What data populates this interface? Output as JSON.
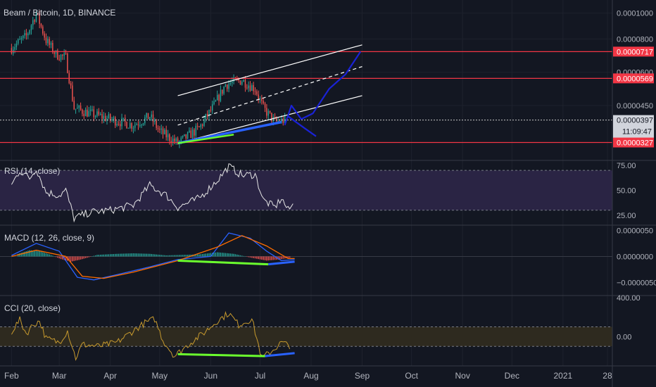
{
  "chart_data": [
    {
      "type": "candlestick",
      "title": "Beam / Bitcoin, 1D, BINANCE",
      "y_scale": "log",
      "ylim": [
        2.8e-05,
        0.000112
      ],
      "y_ticks": [
        "0.0001000",
        "0.0000800",
        "0.0000600",
        "0.0000450"
      ],
      "price_path": [
        [
          "2020-02-01",
          7.4e-05
        ],
        [
          "2020-02-10",
          8.2e-05
        ],
        [
          "2020-02-16",
          0.0001
        ],
        [
          "2020-02-22",
          7.9e-05
        ],
        [
          "2020-02-28",
          7e-05
        ],
        [
          "2020-03-05",
          6.8e-05
        ],
        [
          "2020-03-10",
          4.4e-05
        ],
        [
          "2020-03-20",
          4.2e-05
        ],
        [
          "2020-04-01",
          4e-05
        ],
        [
          "2020-04-15",
          3.8e-05
        ],
        [
          "2020-04-25",
          4.1e-05
        ],
        [
          "2020-05-01",
          3.6e-05
        ],
        [
          "2020-05-12",
          3.25e-05
        ],
        [
          "2020-05-25",
          3.7e-05
        ],
        [
          "2020-06-03",
          4.5e-05
        ],
        [
          "2020-06-10",
          5.4e-05
        ],
        [
          "2020-06-20",
          5.6e-05
        ],
        [
          "2020-06-28",
          5.2e-05
        ],
        [
          "2020-07-03",
          4.4e-05
        ],
        [
          "2020-07-10",
          3.9e-05
        ],
        [
          "2020-07-16",
          3.97e-05
        ]
      ],
      "horizontal_levels": [
        {
          "price": 7.17e-05,
          "label": "0.0000717"
        },
        {
          "price": 5.69e-05,
          "label": "0.0000569"
        },
        {
          "price": 3.27e-05,
          "label": "0.0000327"
        }
      ],
      "last_price": {
        "price": 3.97e-05,
        "label": "0.0000397",
        "countdown": "11:09:47"
      },
      "channel": {
        "upper": [
          [
            "2020-05-12",
            4.9e-05
          ],
          [
            "2020-09-01",
            7.6e-05
          ]
        ],
        "middle": [
          [
            "2020-05-12",
            3.8e-05
          ],
          [
            "2020-09-01",
            6.3e-05
          ]
        ],
        "lower": [
          [
            "2020-05-12",
            3.25e-05
          ],
          [
            "2020-09-01",
            4.9e-05
          ]
        ]
      },
      "projection": [
        [
          "2020-07-16",
          3.8e-05
        ],
        [
          "2020-07-20",
          4.5e-05
        ],
        [
          "2020-07-26",
          4e-05
        ],
        [
          "2020-08-02",
          4.2e-05
        ],
        [
          "2020-08-12",
          5.2e-05
        ],
        [
          "2020-08-22",
          5.9e-05
        ],
        [
          "2020-08-31",
          7.17e-05
        ]
      ],
      "projection_alt": [
        [
          "2020-07-18",
          4.1e-05
        ],
        [
          "2020-07-28",
          3.7e-05
        ],
        [
          "2020-08-04",
          3.45e-05
        ]
      ],
      "green_trendline": [
        [
          "2020-05-12",
          3.25e-05
        ],
        [
          "2020-06-15",
          3.5e-05
        ]
      ],
      "blue_trendline": [
        [
          "2020-05-12",
          3.25e-05
        ],
        [
          "2020-07-14",
          3.9e-05
        ]
      ],
      "colors": {
        "up": "#26a69a",
        "down": "#ef5350",
        "level": "#f23645",
        "projection": "#1a22d6",
        "green": "#6bff2e"
      }
    },
    {
      "type": "line",
      "title": "RSI (14, close)",
      "ylim": [
        15,
        80
      ],
      "y_ticks": [
        "75.00",
        "50.00",
        "25.00"
      ],
      "band": [
        30,
        70
      ],
      "path": [
        [
          "2020-02-01",
          55
        ],
        [
          "2020-02-06",
          70
        ],
        [
          "2020-02-12",
          62
        ],
        [
          "2020-02-16",
          72
        ],
        [
          "2020-02-22",
          48
        ],
        [
          "2020-03-01",
          45
        ],
        [
          "2020-03-05",
          50
        ],
        [
          "2020-03-10",
          22
        ],
        [
          "2020-03-20",
          28
        ],
        [
          "2020-04-01",
          30
        ],
        [
          "2020-04-15",
          35
        ],
        [
          "2020-04-25",
          55
        ],
        [
          "2020-05-05",
          45
        ],
        [
          "2020-05-12",
          33
        ],
        [
          "2020-05-25",
          42
        ],
        [
          "2020-06-05",
          60
        ],
        [
          "2020-06-12",
          74
        ],
        [
          "2020-06-20",
          65
        ],
        [
          "2020-06-28",
          66
        ],
        [
          "2020-07-03",
          40
        ],
        [
          "2020-07-10",
          33
        ],
        [
          "2020-07-14",
          42
        ],
        [
          "2020-07-18",
          30
        ],
        [
          "2020-07-22",
          37
        ]
      ],
      "colors": {
        "line": "#e6e6e6",
        "band": "#2a2444"
      }
    },
    {
      "type": "line",
      "title": "MACD (12, 26, close, 9)",
      "ylim": [
        -7.5e-06,
        6e-06
      ],
      "y_ticks": [
        "0.0000050",
        "0.0000000",
        "−0.0000050"
      ],
      "macd_line": [
        [
          "2020-02-01",
          2e-07
        ],
        [
          "2020-02-16",
          2.5e-06
        ],
        [
          "2020-03-01",
          1e-06
        ],
        [
          "2020-03-12",
          -4e-06
        ],
        [
          "2020-03-22",
          -4.5e-06
        ],
        [
          "2020-04-05",
          -3.5e-06
        ],
        [
          "2020-04-25",
          -2e-06
        ],
        [
          "2020-05-12",
          -6e-07
        ],
        [
          "2020-06-01",
          0.0
        ],
        [
          "2020-06-12",
          4.5e-06
        ],
        [
          "2020-06-25",
          3.5e-06
        ],
        [
          "2020-07-05",
          1e-06
        ],
        [
          "2020-07-14",
          -8e-07
        ],
        [
          "2020-07-22",
          -6e-07
        ]
      ],
      "signal_line": [
        [
          "2020-02-01",
          0.0
        ],
        [
          "2020-02-16",
          1.2e-06
        ],
        [
          "2020-03-05",
          0.0
        ],
        [
          "2020-03-15",
          -3.8e-06
        ],
        [
          "2020-03-28",
          -4.2e-06
        ],
        [
          "2020-04-15",
          -3e-06
        ],
        [
          "2020-05-12",
          -8e-07
        ],
        [
          "2020-06-05",
          1.8e-06
        ],
        [
          "2020-06-20",
          4e-06
        ],
        [
          "2020-07-05",
          2e-06
        ],
        [
          "2020-07-18",
          -4e-07
        ],
        [
          "2020-07-22",
          -4e-07
        ]
      ],
      "histogram": [
        [
          "2020-02-05",
          5e-07
        ],
        [
          "2020-02-12",
          1.2e-06
        ],
        [
          "2020-02-18",
          1e-06
        ],
        [
          "2020-02-24",
          4e-07
        ],
        [
          "2020-03-02",
          -5e-07
        ],
        [
          "2020-03-08",
          -1e-06
        ],
        [
          "2020-03-14",
          -6e-07
        ],
        [
          "2020-03-24",
          3e-07
        ],
        [
          "2020-04-05",
          5e-07
        ],
        [
          "2020-04-15",
          6e-07
        ],
        [
          "2020-04-25",
          5e-07
        ],
        [
          "2020-05-05",
          2e-07
        ],
        [
          "2020-05-15",
          3e-07
        ],
        [
          "2020-05-25",
          4e-07
        ],
        [
          "2020-06-05",
          8e-07
        ],
        [
          "2020-06-15",
          5e-07
        ],
        [
          "2020-06-25",
          -2e-07
        ],
        [
          "2020-07-05",
          -8e-07
        ],
        [
          "2020-07-12",
          -6e-07
        ],
        [
          "2020-07-20",
          -2e-07
        ]
      ],
      "green_trendline": [
        [
          "2020-05-12",
          -8e-07
        ],
        [
          "2020-07-06",
          -1.5e-06
        ]
      ],
      "blue_trendline": [
        [
          "2020-07-06",
          -1.5e-06
        ],
        [
          "2020-07-22",
          -1e-06
        ]
      ],
      "colors": {
        "macd": "#2962ff",
        "signal": "#ff6d00",
        "hist_up": "#26a69a",
        "hist_down": "#ef5350"
      }
    },
    {
      "type": "line",
      "title": "CCI (20, close)",
      "ylim": [
        -300,
        420
      ],
      "y_ticks": [
        "400.00",
        "0.00"
      ],
      "band": [
        -100,
        100
      ],
      "path": [
        [
          "2020-02-01",
          50
        ],
        [
          "2020-02-06",
          170
        ],
        [
          "2020-02-10",
          30
        ],
        [
          "2020-02-14",
          120
        ],
        [
          "2020-02-18",
          160
        ],
        [
          "2020-02-22",
          -20
        ],
        [
          "2020-03-01",
          -60
        ],
        [
          "2020-03-06",
          60
        ],
        [
          "2020-03-11",
          -220
        ],
        [
          "2020-03-15",
          -80
        ],
        [
          "2020-03-25",
          -100
        ],
        [
          "2020-04-05",
          -60
        ],
        [
          "2020-04-15",
          60
        ],
        [
          "2020-04-22",
          140
        ],
        [
          "2020-04-28",
          180
        ],
        [
          "2020-05-03",
          -40
        ],
        [
          "2020-05-10",
          -200
        ],
        [
          "2020-05-20",
          -60
        ],
        [
          "2020-05-28",
          40
        ],
        [
          "2020-06-05",
          160
        ],
        [
          "2020-06-12",
          240
        ],
        [
          "2020-06-18",
          120
        ],
        [
          "2020-06-26",
          180
        ],
        [
          "2020-07-02",
          -220
        ],
        [
          "2020-07-08",
          -150
        ],
        [
          "2020-07-14",
          -60
        ],
        [
          "2020-07-20",
          -100
        ]
      ],
      "green_trendline": [
        [
          "2020-05-12",
          -180
        ],
        [
          "2020-07-04",
          -200
        ]
      ],
      "blue_trendline": [
        [
          "2020-07-04",
          -200
        ],
        [
          "2020-07-22",
          -170
        ]
      ],
      "colors": {
        "line": "#c79a2e",
        "band": "#2e2a1f"
      }
    }
  ],
  "x_axis": {
    "range": [
      "2020-01-25",
      "2021-01-31"
    ],
    "ticks": [
      {
        "label": "Feb",
        "date": "2020-02-01"
      },
      {
        "label": "Mar",
        "date": "2020-03-01"
      },
      {
        "label": "Apr",
        "date": "2020-04-01"
      },
      {
        "label": "May",
        "date": "2020-05-01"
      },
      {
        "label": "Jun",
        "date": "2020-06-01"
      },
      {
        "label": "Jul",
        "date": "2020-07-01"
      },
      {
        "label": "Aug",
        "date": "2020-08-01"
      },
      {
        "label": "Sep",
        "date": "2020-09-01"
      },
      {
        "label": "Oct",
        "date": "2020-10-01"
      },
      {
        "label": "Nov",
        "date": "2020-11-01"
      },
      {
        "label": "Dec",
        "date": "2020-12-01"
      },
      {
        "label": "2021",
        "date": "2021-01-01"
      },
      {
        "label": "28",
        "date": "2021-01-28"
      }
    ]
  }
}
